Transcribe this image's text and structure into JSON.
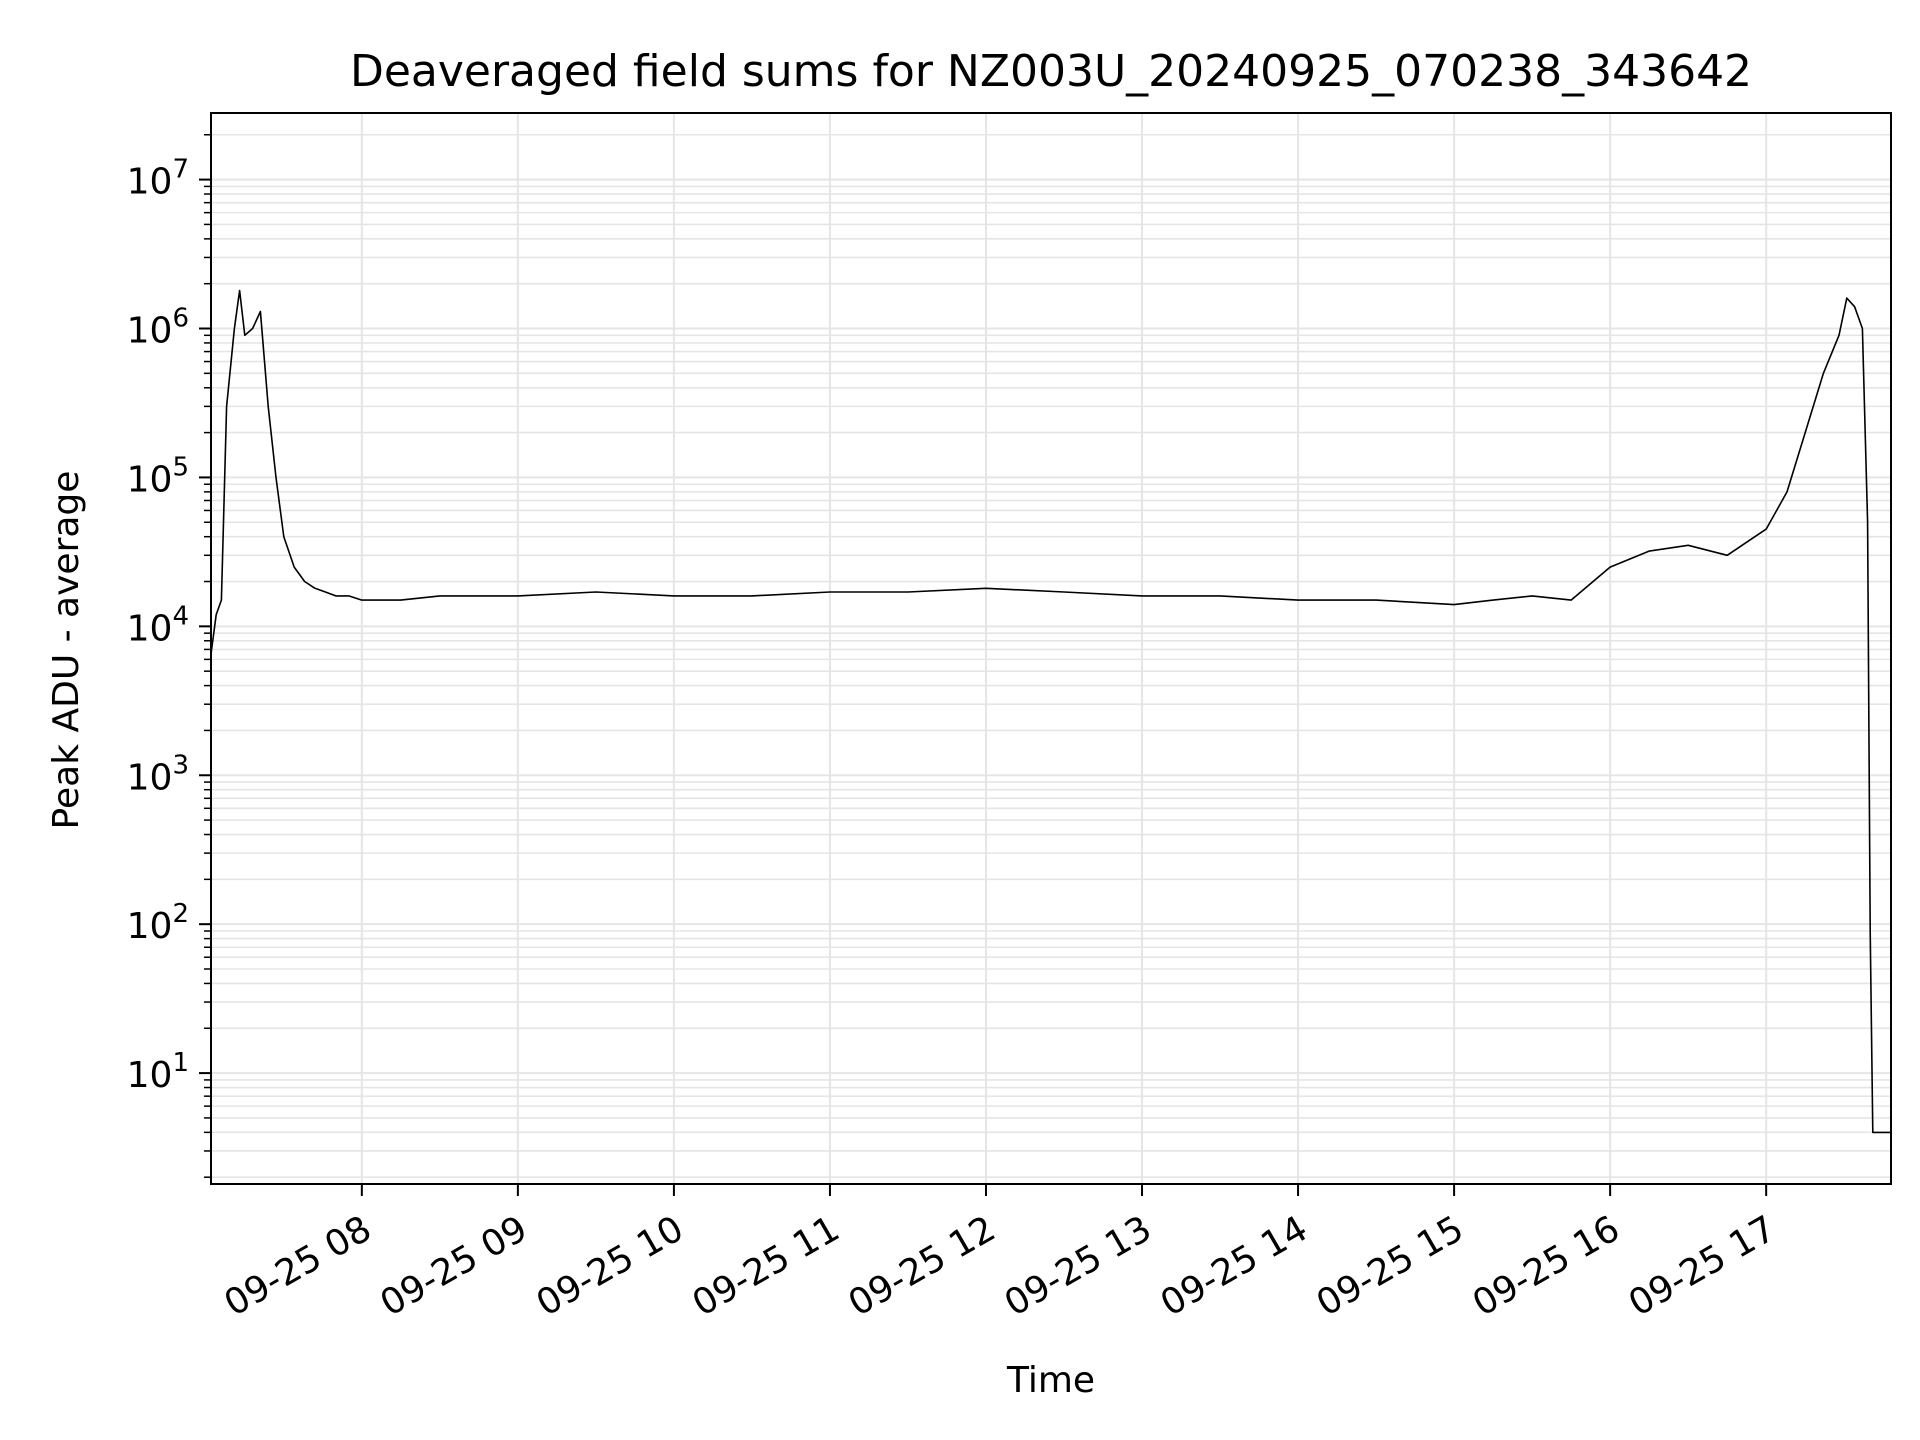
{
  "chart_data": {
    "type": "line",
    "title": "Deaveraged field sums for NZ003U_20240925_070238_343642",
    "xlabel": "Time",
    "ylabel": "Peak ADU - average",
    "y_scale": "log",
    "ylim": [
      1.8,
      28000000
    ],
    "xlim": [
      "2024-09-25 07:02",
      "2024-09-25 17:48"
    ],
    "grid": true,
    "line_color": "#000000",
    "grid_color": "#e5e5e5",
    "x_ticks": [
      {
        "value": "2024-09-25 08:00",
        "label": "09-25 08"
      },
      {
        "value": "2024-09-25 09:00",
        "label": "09-25 09"
      },
      {
        "value": "2024-09-25 10:00",
        "label": "09-25 10"
      },
      {
        "value": "2024-09-25 11:00",
        "label": "09-25 11"
      },
      {
        "value": "2024-09-25 12:00",
        "label": "09-25 12"
      },
      {
        "value": "2024-09-25 13:00",
        "label": "09-25 13"
      },
      {
        "value": "2024-09-25 14:00",
        "label": "09-25 14"
      },
      {
        "value": "2024-09-25 15:00",
        "label": "09-25 15"
      },
      {
        "value": "2024-09-25 16:00",
        "label": "09-25 16"
      },
      {
        "value": "2024-09-25 17:00",
        "label": "09-25 17"
      }
    ],
    "y_ticks": [
      {
        "value": 10,
        "base": "10",
        "exp": "1"
      },
      {
        "value": 100,
        "base": "10",
        "exp": "2"
      },
      {
        "value": 1000,
        "base": "10",
        "exp": "3"
      },
      {
        "value": 10000,
        "base": "10",
        "exp": "4"
      },
      {
        "value": 100000,
        "base": "10",
        "exp": "5"
      },
      {
        "value": 1000000,
        "base": "10",
        "exp": "6"
      },
      {
        "value": 10000000,
        "base": "10",
        "exp": "7"
      }
    ],
    "series": [
      {
        "x": [
          "2024-09-25 07:02",
          "2024-09-25 07:04",
          "2024-09-25 07:06",
          "2024-09-25 07:08",
          "2024-09-25 07:11",
          "2024-09-25 07:13",
          "2024-09-25 07:15",
          "2024-09-25 07:18",
          "2024-09-25 07:21",
          "2024-09-25 07:24",
          "2024-09-25 07:27",
          "2024-09-25 07:30",
          "2024-09-25 07:34",
          "2024-09-25 07:38",
          "2024-09-25 07:42",
          "2024-09-25 07:46",
          "2024-09-25 07:50",
          "2024-09-25 07:55",
          "2024-09-25 08:00",
          "2024-09-25 08:15",
          "2024-09-25 08:30",
          "2024-09-25 08:45",
          "2024-09-25 09:00",
          "2024-09-25 09:30",
          "2024-09-25 10:00",
          "2024-09-25 10:30",
          "2024-09-25 11:00",
          "2024-09-25 11:30",
          "2024-09-25 12:00",
          "2024-09-25 12:30",
          "2024-09-25 13:00",
          "2024-09-25 13:30",
          "2024-09-25 14:00",
          "2024-09-25 14:30",
          "2024-09-25 15:00",
          "2024-09-25 15:15",
          "2024-09-25 15:30",
          "2024-09-25 15:45",
          "2024-09-25 16:00",
          "2024-09-25 16:15",
          "2024-09-25 16:30",
          "2024-09-25 16:45",
          "2024-09-25 17:00",
          "2024-09-25 17:08",
          "2024-09-25 17:15",
          "2024-09-25 17:22",
          "2024-09-25 17:28",
          "2024-09-25 17:31",
          "2024-09-25 17:34",
          "2024-09-25 17:37",
          "2024-09-25 17:39",
          "2024-09-25 17:40",
          "2024-09-25 17:41",
          "2024-09-25 17:48"
        ],
        "y": [
          6500,
          12000,
          15000,
          300000,
          1000000,
          1800000,
          900000,
          1000000,
          1300000,
          300000,
          100000,
          40000,
          25000,
          20000,
          18000,
          17000,
          16000,
          16000,
          15000,
          15000,
          16000,
          16000,
          16000,
          17000,
          16000,
          16000,
          17000,
          17000,
          18000,
          17000,
          16000,
          16000,
          15000,
          15000,
          14000,
          15000,
          16000,
          15000,
          25000,
          32000,
          35000,
          30000,
          45000,
          80000,
          200000,
          500000,
          900000,
          1600000,
          1400000,
          1000000,
          50000,
          90,
          4,
          4
        ]
      }
    ]
  }
}
